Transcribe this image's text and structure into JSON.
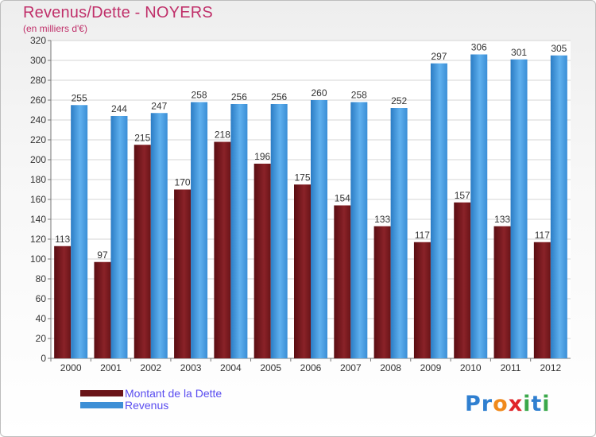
{
  "header": {
    "title": "Revenus/Dette - NOYERS",
    "subtitle": "(en milliers d'€)"
  },
  "colors": {
    "dette": "#7a1a20",
    "revenus": "#3d8fd6",
    "title": "#c0306a",
    "legend_text": "#5a4df0"
  },
  "chart_data": {
    "type": "bar",
    "title": "Revenus/Dette - NOYERS",
    "ylabel": "(en milliers d'€)",
    "xlabel": "",
    "categories": [
      "2000",
      "2001",
      "2002",
      "2003",
      "2004",
      "2005",
      "2006",
      "2007",
      "2008",
      "2009",
      "2010",
      "2011",
      "2012"
    ],
    "series": [
      {
        "name": "Montant de la Dette",
        "values": [
          113,
          97,
          215,
          170,
          218,
          196,
          175,
          154,
          133,
          117,
          157,
          133,
          117
        ]
      },
      {
        "name": "Revenus",
        "values": [
          255,
          244,
          247,
          258,
          256,
          256,
          260,
          258,
          252,
          297,
          306,
          301,
          305
        ]
      }
    ],
    "ylim": [
      0,
      320
    ],
    "yticks": [
      0,
      20,
      40,
      60,
      80,
      100,
      120,
      140,
      160,
      180,
      200,
      220,
      240,
      260,
      280,
      300,
      320
    ],
    "grid": true,
    "legend_position": "bottom-left"
  },
  "legend": {
    "items": [
      {
        "label": "Montant de la Dette"
      },
      {
        "label": "Revenus"
      }
    ]
  },
  "logo": {
    "letters": [
      "P",
      "r",
      "o",
      "x",
      "i",
      "t",
      "i"
    ],
    "letter_colors": [
      "#2f7fd0",
      "#2f7fd0",
      "#f08a1c",
      "#e0262b",
      "#3aa84a",
      "#2f7fd0",
      "#3aa84a"
    ]
  }
}
